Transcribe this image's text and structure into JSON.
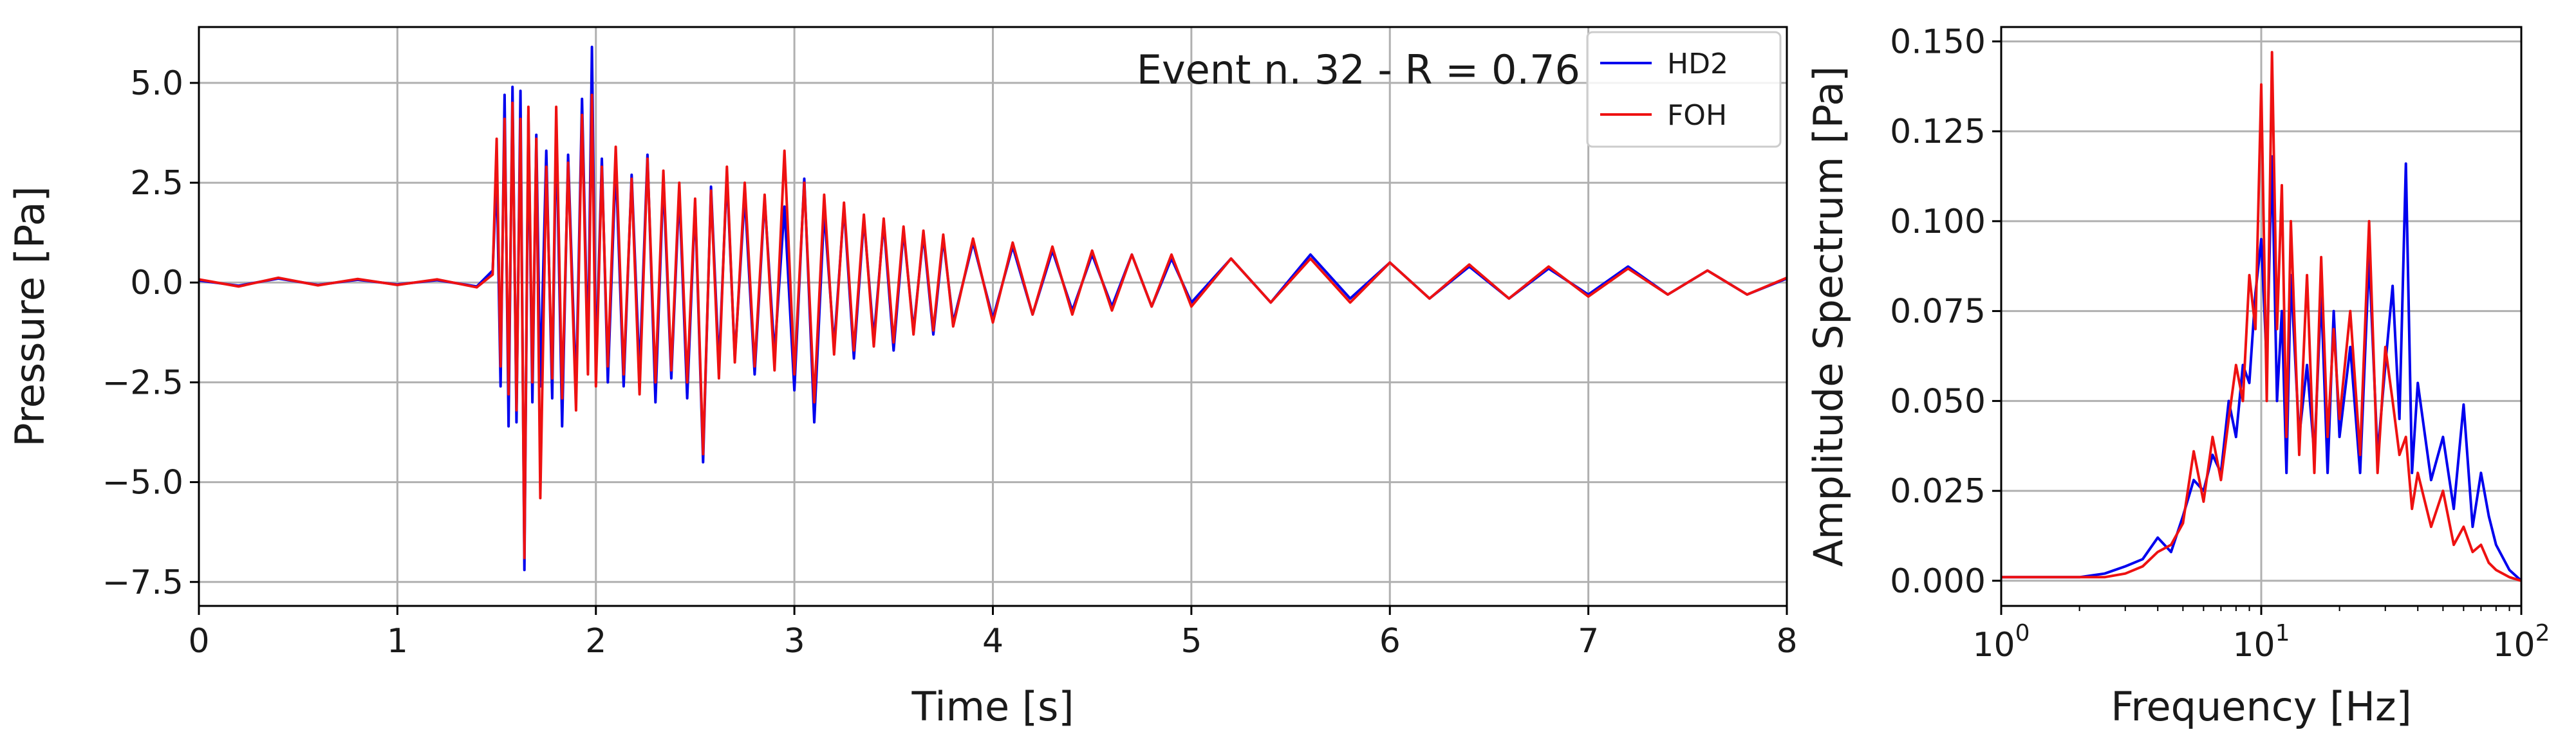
{
  "chart_data": [
    {
      "type": "line",
      "title": "",
      "annotation": "Event n. 32 - R = 0.76",
      "xlabel": "Time [s]",
      "ylabel": "Pressure [Pa]",
      "xlim": [
        0,
        8
      ],
      "ylim": [
        -8.1,
        6.4
      ],
      "xticks": [
        0,
        1,
        2,
        3,
        4,
        5,
        6,
        7,
        8
      ],
      "xtick_labels": [
        "0",
        "1",
        "2",
        "3",
        "4",
        "5",
        "6",
        "7",
        "8"
      ],
      "yticks": [
        -7.5,
        -5.0,
        -2.5,
        0.0,
        2.5,
        5.0
      ],
      "ytick_labels": [
        "−7.5",
        "−5.0",
        "−2.5",
        "0.0",
        "2.5",
        "5.0"
      ],
      "grid": true,
      "legend": "top-right",
      "series": [
        {
          "name": "HD2",
          "color": "#0000ee",
          "x": [
            0,
            0.2,
            0.4,
            0.6,
            0.8,
            1.0,
            1.2,
            1.4,
            1.48,
            1.5,
            1.52,
            1.54,
            1.56,
            1.58,
            1.6,
            1.62,
            1.64,
            1.66,
            1.68,
            1.7,
            1.72,
            1.75,
            1.78,
            1.8,
            1.83,
            1.86,
            1.9,
            1.93,
            1.96,
            1.98,
            2.0,
            2.03,
            2.06,
            2.1,
            2.14,
            2.18,
            2.22,
            2.26,
            2.3,
            2.34,
            2.38,
            2.42,
            2.46,
            2.5,
            2.54,
            2.58,
            2.62,
            2.66,
            2.7,
            2.75,
            2.8,
            2.85,
            2.9,
            2.95,
            3.0,
            3.05,
            3.1,
            3.15,
            3.2,
            3.25,
            3.3,
            3.35,
            3.4,
            3.45,
            3.5,
            3.55,
            3.6,
            3.65,
            3.7,
            3.75,
            3.8,
            3.9,
            4.0,
            4.1,
            4.2,
            4.3,
            4.4,
            4.5,
            4.6,
            4.7,
            4.8,
            4.9,
            5.0,
            5.2,
            5.4,
            5.6,
            5.8,
            6.0,
            6.2,
            6.4,
            6.6,
            6.8,
            7.0,
            7.2,
            7.4,
            7.6,
            7.8,
            8.0
          ],
          "y": [
            0.05,
            -0.08,
            0.1,
            -0.06,
            0.07,
            -0.05,
            0.06,
            -0.1,
            0.3,
            2.8,
            -2.6,
            4.7,
            -3.6,
            4.9,
            -3.5,
            4.8,
            -7.2,
            4.2,
            -3.0,
            3.7,
            -2.6,
            3.3,
            -2.9,
            4.0,
            -3.6,
            3.2,
            -2.8,
            4.6,
            -1.9,
            5.9,
            -2.2,
            3.1,
            -2.5,
            3.0,
            -2.6,
            2.7,
            -2.3,
            3.2,
            -3.0,
            2.6,
            -2.4,
            2.3,
            -2.9,
            2.0,
            -4.5,
            2.4,
            -2.1,
            2.7,
            -1.9,
            2.2,
            -2.3,
            2.1,
            -1.8,
            1.9,
            -2.7,
            2.6,
            -3.5,
            1.8,
            -1.6,
            1.9,
            -1.9,
            1.6,
            -1.4,
            1.5,
            -1.7,
            1.3,
            -1.2,
            1.2,
            -1.3,
            1.1,
            -1.0,
            1.0,
            -0.9,
            0.9,
            -0.8,
            0.8,
            -0.7,
            0.7,
            -0.6,
            0.7,
            -0.6,
            0.6,
            -0.5,
            0.6,
            -0.5,
            0.7,
            -0.4,
            0.5,
            -0.4,
            0.4,
            -0.4,
            0.35,
            -0.3,
            0.4,
            -0.3,
            0.3,
            -0.3,
            0.1
          ]
        },
        {
          "name": "FOH",
          "color": "#ee1111",
          "x": [
            0,
            0.2,
            0.4,
            0.6,
            0.8,
            1.0,
            1.2,
            1.4,
            1.48,
            1.5,
            1.52,
            1.54,
            1.56,
            1.58,
            1.6,
            1.62,
            1.64,
            1.66,
            1.68,
            1.7,
            1.72,
            1.75,
            1.78,
            1.8,
            1.83,
            1.86,
            1.9,
            1.93,
            1.96,
            1.98,
            2.0,
            2.03,
            2.06,
            2.1,
            2.14,
            2.18,
            2.22,
            2.26,
            2.3,
            2.34,
            2.38,
            2.42,
            2.46,
            2.5,
            2.54,
            2.58,
            2.62,
            2.66,
            2.7,
            2.75,
            2.8,
            2.85,
            2.9,
            2.95,
            3.0,
            3.05,
            3.1,
            3.15,
            3.2,
            3.25,
            3.3,
            3.35,
            3.4,
            3.45,
            3.5,
            3.55,
            3.6,
            3.65,
            3.7,
            3.75,
            3.8,
            3.9,
            4.0,
            4.1,
            4.2,
            4.3,
            4.4,
            4.5,
            4.6,
            4.7,
            4.8,
            4.9,
            5.0,
            5.2,
            5.4,
            5.6,
            5.8,
            6.0,
            6.2,
            6.4,
            6.6,
            6.8,
            7.0,
            7.2,
            7.4,
            7.6,
            7.8,
            8.0
          ],
          "y": [
            0.08,
            -0.1,
            0.12,
            -0.07,
            0.09,
            -0.06,
            0.08,
            -0.12,
            0.2,
            3.6,
            -2.1,
            4.1,
            -2.8,
            4.5,
            -3.2,
            4.1,
            -6.9,
            4.4,
            -2.5,
            3.6,
            -5.4,
            2.9,
            -2.4,
            4.4,
            -2.9,
            3.0,
            -3.2,
            4.2,
            -2.3,
            4.7,
            -2.6,
            2.9,
            -2.1,
            3.4,
            -2.3,
            2.6,
            -2.8,
            3.1,
            -2.5,
            2.8,
            -2.2,
            2.5,
            -2.5,
            2.1,
            -4.3,
            2.3,
            -2.4,
            2.9,
            -2.0,
            2.5,
            -2.1,
            2.2,
            -2.2,
            3.3,
            -2.3,
            2.5,
            -3.0,
            2.2,
            -1.8,
            2.0,
            -1.7,
            1.7,
            -1.6,
            1.6,
            -1.5,
            1.4,
            -1.3,
            1.3,
            -1.2,
            1.2,
            -1.1,
            1.1,
            -1.0,
            1.0,
            -0.8,
            0.9,
            -0.8,
            0.8,
            -0.7,
            0.7,
            -0.6,
            0.7,
            -0.6,
            0.6,
            -0.5,
            0.6,
            -0.5,
            0.5,
            -0.4,
            0.45,
            -0.4,
            0.4,
            -0.35,
            0.35,
            -0.3,
            0.3,
            -0.3,
            0.12
          ]
        }
      ]
    },
    {
      "type": "line",
      "title": "",
      "xlabel": "Frequency [Hz]",
      "ylabel": "Amplitude Spectrum [Pa]",
      "xscale": "log",
      "xlim": [
        1,
        100
      ],
      "ylim": [
        -0.007,
        0.154
      ],
      "xticks": [
        1,
        10,
        100
      ],
      "xtick_labels": [
        {
          "base": "10",
          "exp": "0"
        },
        {
          "base": "10",
          "exp": "1"
        },
        {
          "base": "10",
          "exp": "2"
        }
      ],
      "yticks": [
        0.0,
        0.025,
        0.05,
        0.075,
        0.1,
        0.125,
        0.15
      ],
      "ytick_labels": [
        "0.000",
        "0.025",
        "0.050",
        "0.075",
        "0.100",
        "0.125",
        "0.150"
      ],
      "grid": true,
      "series": [
        {
          "name": "HD2",
          "color": "#0000ee",
          "x": [
            1,
            1.5,
            2,
            2.5,
            3,
            3.5,
            4,
            4.5,
            5,
            5.5,
            6,
            6.5,
            7,
            7.5,
            8,
            8.5,
            9,
            9.5,
            10,
            10.5,
            11,
            11.5,
            12,
            12.5,
            13,
            14,
            15,
            16,
            17,
            18,
            19,
            20,
            22,
            24,
            26,
            28,
            30,
            32,
            34,
            36,
            38,
            40,
            45,
            50,
            55,
            60,
            65,
            70,
            75,
            80,
            90,
            100
          ],
          "y": [
            0.001,
            0.001,
            0.001,
            0.002,
            0.004,
            0.006,
            0.012,
            0.008,
            0.018,
            0.028,
            0.025,
            0.035,
            0.03,
            0.05,
            0.04,
            0.06,
            0.055,
            0.08,
            0.095,
            0.06,
            0.118,
            0.05,
            0.075,
            0.03,
            0.085,
            0.04,
            0.06,
            0.035,
            0.08,
            0.03,
            0.075,
            0.04,
            0.065,
            0.03,
            0.09,
            0.035,
            0.06,
            0.082,
            0.045,
            0.116,
            0.03,
            0.055,
            0.028,
            0.04,
            0.02,
            0.049,
            0.015,
            0.03,
            0.018,
            0.01,
            0.003,
            0.0
          ]
        },
        {
          "name": "FOH",
          "color": "#ee1111",
          "x": [
            1,
            1.5,
            2,
            2.5,
            3,
            3.5,
            4,
            4.5,
            5,
            5.5,
            6,
            6.5,
            7,
            7.5,
            8,
            8.5,
            9,
            9.5,
            10,
            10.5,
            11,
            11.5,
            12,
            12.5,
            13,
            14,
            15,
            16,
            17,
            18,
            19,
            20,
            22,
            24,
            26,
            28,
            30,
            32,
            34,
            36,
            38,
            40,
            45,
            50,
            55,
            60,
            65,
            70,
            75,
            80,
            90,
            100
          ],
          "y": [
            0.001,
            0.001,
            0.001,
            0.001,
            0.002,
            0.004,
            0.008,
            0.01,
            0.016,
            0.036,
            0.022,
            0.04,
            0.028,
            0.045,
            0.06,
            0.05,
            0.085,
            0.07,
            0.138,
            0.05,
            0.147,
            0.07,
            0.11,
            0.04,
            0.1,
            0.035,
            0.085,
            0.03,
            0.09,
            0.04,
            0.07,
            0.045,
            0.075,
            0.035,
            0.1,
            0.03,
            0.065,
            0.05,
            0.035,
            0.04,
            0.02,
            0.03,
            0.015,
            0.025,
            0.01,
            0.015,
            0.008,
            0.01,
            0.005,
            0.003,
            0.001,
            0.0
          ]
        }
      ]
    }
  ]
}
